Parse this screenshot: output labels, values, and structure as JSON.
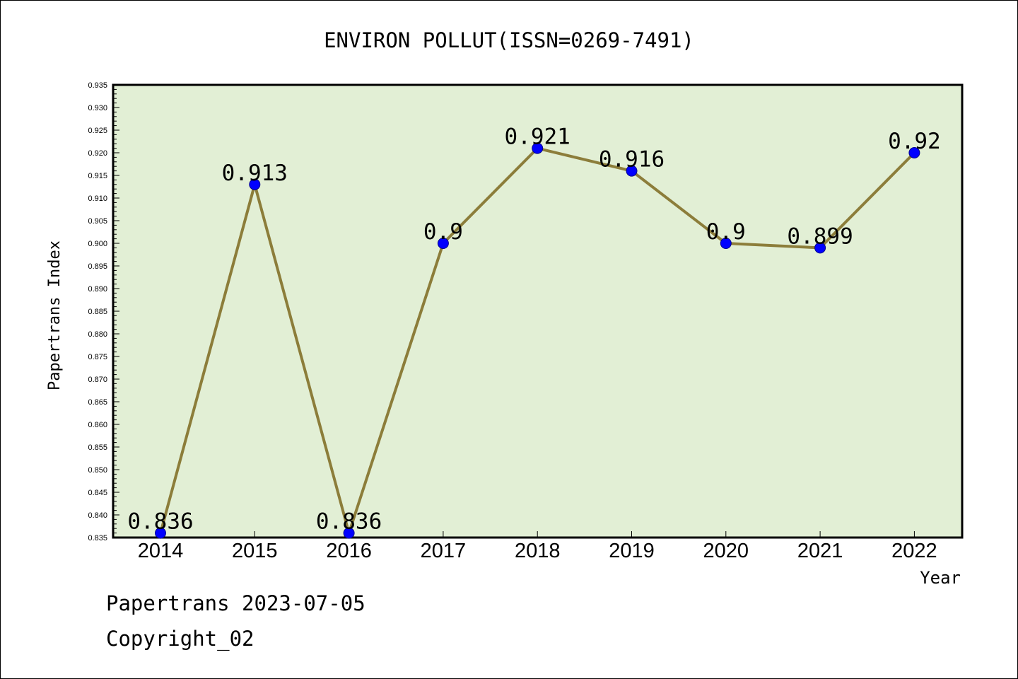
{
  "chart_data": {
    "type": "line",
    "title": "ENVIRON POLLUT(ISSN=0269-7491)",
    "xlabel": "Year",
    "ylabel": "Papertrans Index",
    "categories": [
      "2014",
      "2015",
      "2016",
      "2017",
      "2018",
      "2019",
      "2020",
      "2021",
      "2022"
    ],
    "values": [
      0.836,
      0.913,
      0.836,
      0.9,
      0.921,
      0.916,
      0.9,
      0.899,
      0.92
    ],
    "data_labels": [
      "0.836",
      "0.913",
      "0.836",
      "0.9",
      "0.921",
      "0.916",
      "0.9",
      "0.899",
      "0.92"
    ],
    "ylim": [
      0.835,
      0.935
    ],
    "yticks": [
      "0.835",
      "0.840",
      "0.845",
      "0.850",
      "0.855",
      "0.860",
      "0.865",
      "0.870",
      "0.875",
      "0.880",
      "0.885",
      "0.890",
      "0.895",
      "0.900",
      "0.905",
      "0.910",
      "0.915",
      "0.920",
      "0.925",
      "0.930",
      "0.935"
    ],
    "grid": false,
    "colors": {
      "plot_background": "#e2efd5",
      "line": "#8c7d3a",
      "marker": "#0000ff"
    }
  },
  "footer": {
    "line1": "Papertrans 2023-07-05",
    "line2": "Copyright_02"
  }
}
